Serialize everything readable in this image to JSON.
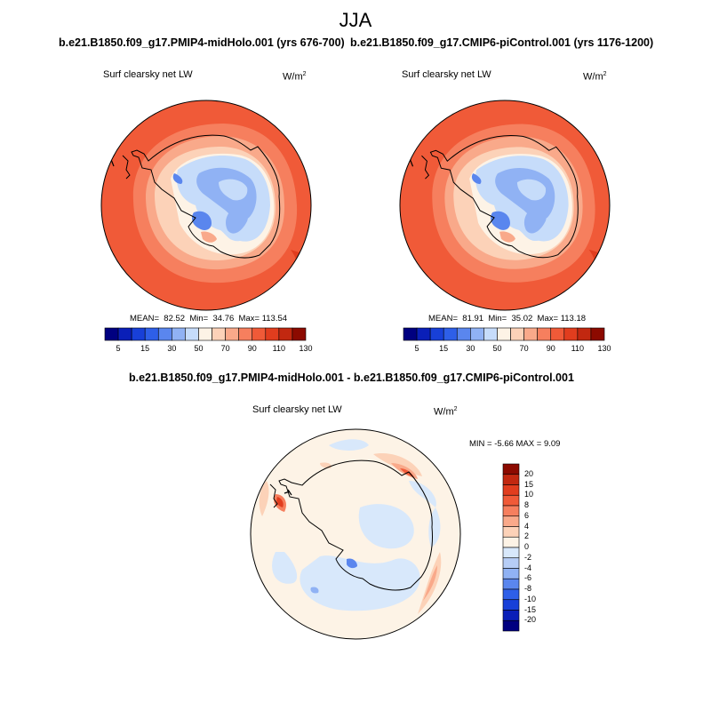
{
  "figure": {
    "season": "JJA",
    "diff_title": "b.e21.B1850.f09_g17.PMIP4-midHolo.001 - b.e21.B1850.f09_g17.CMIP6-piControl.001"
  },
  "panels": [
    {
      "case": "b.e21.B1850.f09_g17.PMIP4-midHolo.001 (yrs 676-700)",
      "variable": "Surf clearsky net LW",
      "units": "W/m",
      "units_exp": "2",
      "mean_label": "MEAN=",
      "mean": "82.52",
      "min_label": "Min=",
      "min": "34.76",
      "max_label": "Max=",
      "max": "113.54"
    },
    {
      "case": "b.e21.B1850.f09_g17.CMIP6-piControl.001 (yrs 1176-1200)",
      "variable": "Surf clearsky net LW",
      "units": "W/m",
      "units_exp": "2",
      "mean_label": "MEAN=",
      "mean": "81.91",
      "min_label": "Min=",
      "min": "35.02",
      "max_label": "Max=",
      "max": "113.18"
    }
  ],
  "diff_panel": {
    "variable": "Surf clearsky net LW",
    "units": "W/m",
    "units_exp": "2",
    "range_text": "MIN =  -5.66 MAX =   9.09"
  },
  "colorbar_abs": {
    "colors": [
      "#000080",
      "#0a1fb8",
      "#1840d8",
      "#2e5fe8",
      "#5a86ee",
      "#90b2f4",
      "#c6dcfa",
      "#fdf3e6",
      "#fcd2b8",
      "#f9a98a",
      "#f67f5e",
      "#f05a38",
      "#e13d1e",
      "#c22810",
      "#8c0a00"
    ],
    "labels": [
      "5",
      "15",
      "30",
      "50",
      "70",
      "90",
      "110",
      "130"
    ]
  },
  "colorbar_diff": {
    "colors": [
      "#8c0a00",
      "#c22810",
      "#e13d1e",
      "#f05a38",
      "#f67f5e",
      "#f9a98a",
      "#fcd2b8",
      "#fdf3e6",
      "#d8e8fb",
      "#b6cdf6",
      "#90b2f4",
      "#5a86ee",
      "#2e5fe8",
      "#1840d8",
      "#0a1fb8",
      "#000080"
    ],
    "labels": [
      "20",
      "15",
      "10",
      "8",
      "6",
      "4",
      "2",
      "0",
      "-2",
      "-4",
      "-6",
      "-8",
      "-10",
      "-15",
      "-20"
    ]
  }
}
